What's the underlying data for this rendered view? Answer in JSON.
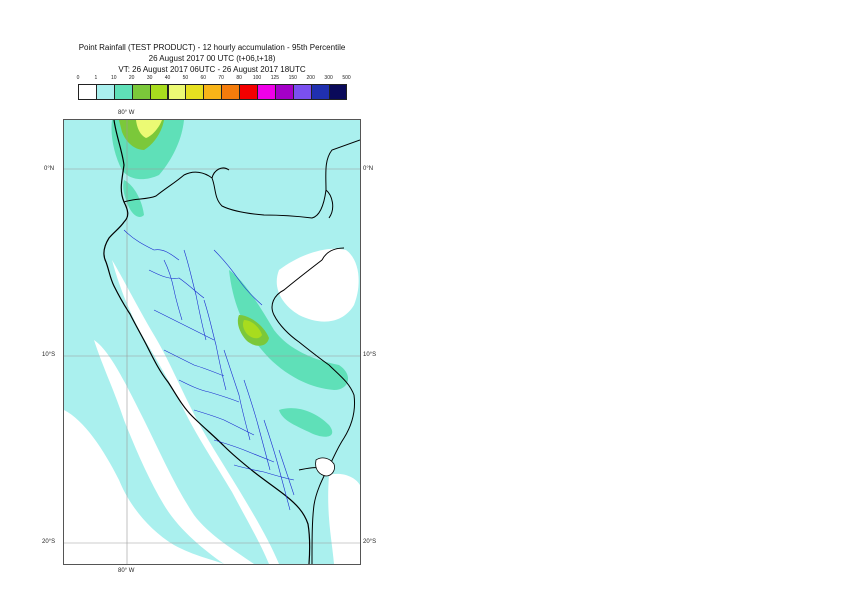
{
  "title": {
    "line1": "Point Rainfall (TEST PRODUCT) - 12 hourly accumulation - 95th Percentile",
    "line2": "26 August 2017 00 UTC (t+06,t+18)",
    "line3": "VT: 26 August 2017 06UTC - 26 August 2017 18UTC"
  },
  "legend": {
    "thresholds": [
      "0",
      "1",
      "10",
      "20",
      "30",
      "40",
      "50",
      "60",
      "70",
      "80",
      "100",
      "125",
      "150",
      "200",
      "300",
      "500"
    ],
    "colors": [
      "#ffffff",
      "#aaf0ee",
      "#5fe0b8",
      "#7bc83a",
      "#a8dc1e",
      "#ecfa74",
      "#e6e020",
      "#f8b418",
      "#f47c0c",
      "#f40000",
      "#f000e8",
      "#a400c8",
      "#7a50f0",
      "#2030b0",
      "#0a0a5a"
    ]
  },
  "axes": {
    "lon_top": "80° W",
    "lon_bottom": "80° W",
    "lat_left": [
      "0°N",
      "10°S",
      "20°S"
    ],
    "lat_right": [
      "0°N",
      "10°S",
      "20°S"
    ]
  }
}
